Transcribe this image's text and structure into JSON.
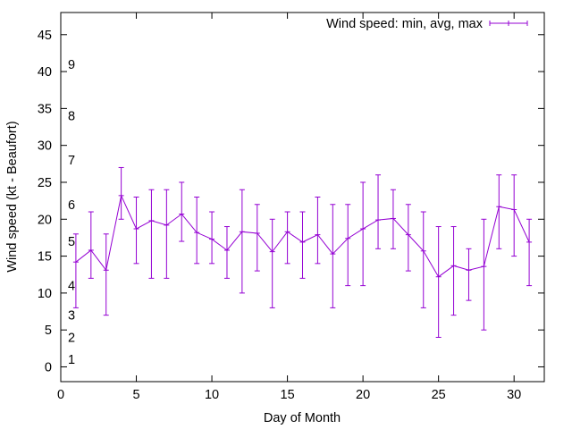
{
  "chart_data": {
    "type": "line",
    "xlabel": "Day of Month",
    "ylabel": "Wind speed (kt - Beaufort)",
    "xlim": [
      0,
      32
    ],
    "ylim": [
      -2,
      48
    ],
    "xticks": [
      0,
      5,
      10,
      15,
      20,
      25,
      30
    ],
    "yticks": [
      0,
      5,
      10,
      15,
      20,
      25,
      30,
      35,
      40,
      45
    ],
    "grid": false,
    "legend": {
      "position": "top-right",
      "label": "Wind speed: min, avg, max"
    },
    "beaufort_labels": [
      {
        "label": "1",
        "value": 1
      },
      {
        "label": "2",
        "value": 4
      },
      {
        "label": "3",
        "value": 7
      },
      {
        "label": "4",
        "value": 11
      },
      {
        "label": "5",
        "value": 17
      },
      {
        "label": "6",
        "value": 22
      },
      {
        "label": "7",
        "value": 28
      },
      {
        "label": "8",
        "value": 34
      },
      {
        "label": "9",
        "value": 41
      }
    ],
    "series": [
      {
        "name": "Wind speed: min, avg, max",
        "color": "#9400D3",
        "points": [
          {
            "x": 1,
            "min": 8,
            "avg": 14.2,
            "max": 18
          },
          {
            "x": 2,
            "min": 12,
            "avg": 15.8,
            "max": 21
          },
          {
            "x": 3,
            "min": 7,
            "avg": 13.1,
            "max": 18
          },
          {
            "x": 4,
            "min": 20,
            "avg": 23.2,
            "max": 27
          },
          {
            "x": 5,
            "min": 14,
            "avg": 18.7,
            "max": 23
          },
          {
            "x": 6,
            "min": 12,
            "avg": 19.8,
            "max": 24
          },
          {
            "x": 7,
            "min": 12,
            "avg": 19.2,
            "max": 24
          },
          {
            "x": 8,
            "min": 17,
            "avg": 20.7,
            "max": 25
          },
          {
            "x": 9,
            "min": 14,
            "avg": 18.2,
            "max": 23
          },
          {
            "x": 10,
            "min": 14,
            "avg": 17.3,
            "max": 21
          },
          {
            "x": 11,
            "min": 12,
            "avg": 15.8,
            "max": 19
          },
          {
            "x": 12,
            "min": 10,
            "avg": 18.3,
            "max": 24
          },
          {
            "x": 13,
            "min": 13,
            "avg": 18.1,
            "max": 22
          },
          {
            "x": 14,
            "min": 8,
            "avg": 15.6,
            "max": 20
          },
          {
            "x": 15,
            "min": 14,
            "avg": 18.3,
            "max": 21
          },
          {
            "x": 16,
            "min": 12,
            "avg": 16.9,
            "max": 21
          },
          {
            "x": 17,
            "min": 14,
            "avg": 17.9,
            "max": 23
          },
          {
            "x": 18,
            "min": 8,
            "avg": 15.3,
            "max": 22
          },
          {
            "x": 19,
            "min": 11,
            "avg": 17.4,
            "max": 22
          },
          {
            "x": 20,
            "min": 11,
            "avg": 18.7,
            "max": 25
          },
          {
            "x": 21,
            "min": 16,
            "avg": 19.9,
            "max": 26
          },
          {
            "x": 22,
            "min": 16,
            "avg": 20.1,
            "max": 24
          },
          {
            "x": 23,
            "min": 13,
            "avg": 17.9,
            "max": 22
          },
          {
            "x": 24,
            "min": 8,
            "avg": 15.7,
            "max": 21
          },
          {
            "x": 25,
            "min": 4,
            "avg": 12.2,
            "max": 19
          },
          {
            "x": 26,
            "min": 7,
            "avg": 13.7,
            "max": 19
          },
          {
            "x": 27,
            "min": 9,
            "avg": 13.1,
            "max": 16
          },
          {
            "x": 28,
            "min": 5,
            "avg": 13.6,
            "max": 20
          },
          {
            "x": 29,
            "min": 16,
            "avg": 21.7,
            "max": 26
          },
          {
            "x": 30,
            "min": 15,
            "avg": 21.3,
            "max": 26
          },
          {
            "x": 31,
            "min": 11,
            "avg": 16.9,
            "max": 20
          }
        ]
      }
    ]
  }
}
